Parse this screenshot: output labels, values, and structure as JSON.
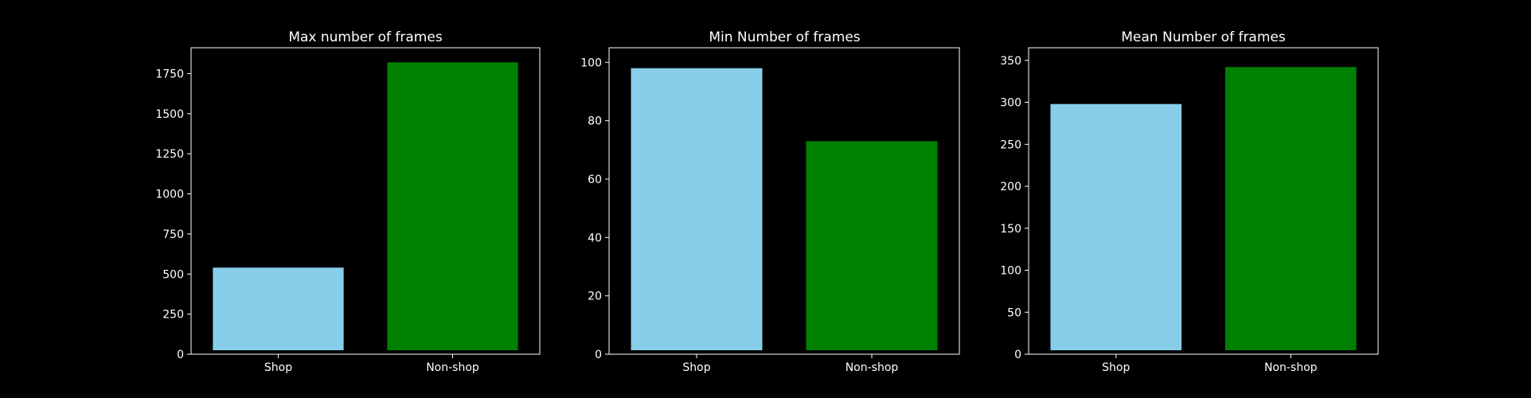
{
  "colors": {
    "background": "#000000",
    "foreground": "#ffffff",
    "shop": "#87ceeb",
    "non_shop": "#008000"
  },
  "chart_data": [
    {
      "type": "bar",
      "title": "Max number of frames",
      "categories": [
        "Shop",
        "Non-shop"
      ],
      "values": [
        540,
        1820
      ],
      "bar_colors": [
        "#87ceeb",
        "#008000"
      ],
      "ylim": [
        0,
        1911
      ],
      "yticks": [
        0,
        250,
        500,
        750,
        1000,
        1250,
        1500,
        1750
      ],
      "xlabel": "",
      "ylabel": "",
      "grid": false
    },
    {
      "type": "bar",
      "title": "Min Number of frames",
      "categories": [
        "Shop",
        "Non-shop"
      ],
      "values": [
        98,
        73
      ],
      "bar_colors": [
        "#87ceeb",
        "#008000"
      ],
      "ylim": [
        0,
        105
      ],
      "yticks": [
        0,
        20,
        40,
        60,
        80,
        100
      ],
      "xlabel": "",
      "ylabel": "",
      "grid": false
    },
    {
      "type": "bar",
      "title": "Mean Number of frames",
      "categories": [
        "Shop",
        "Non-shop"
      ],
      "values": [
        298,
        342
      ],
      "bar_colors": [
        "#87ceeb",
        "#008000"
      ],
      "ylim": [
        0,
        365
      ],
      "yticks": [
        0,
        50,
        100,
        150,
        200,
        250,
        300,
        350
      ],
      "xlabel": "",
      "ylabel": "",
      "grid": false
    }
  ]
}
